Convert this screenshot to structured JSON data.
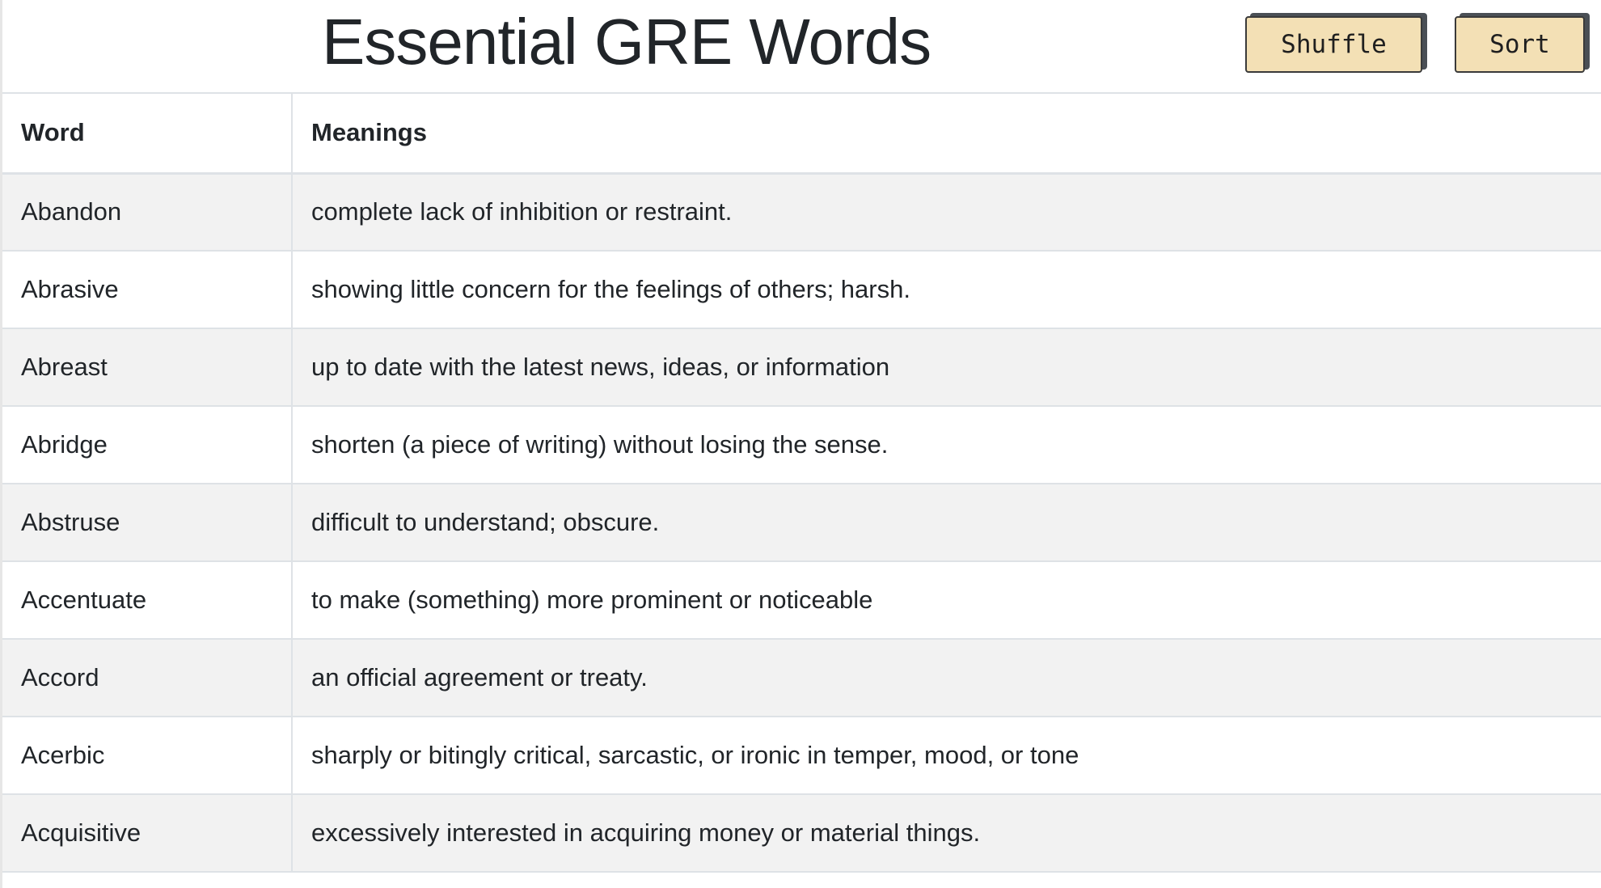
{
  "header": {
    "title": "Essential GRE Words",
    "shuffle_label": "Shuffle",
    "sort_label": "Sort",
    "button_color": "#f3e0b5"
  },
  "table": {
    "columns": [
      "Word",
      "Meanings"
    ],
    "rows": [
      {
        "word": "Abandon",
        "meaning": "complete lack of inhibition or restraint."
      },
      {
        "word": "Abrasive",
        "meaning": "showing little concern for the feelings of others; harsh."
      },
      {
        "word": "Abreast",
        "meaning": "up to date with the latest news, ideas, or information"
      },
      {
        "word": "Abridge",
        "meaning": "shorten (a piece of writing) without losing the sense."
      },
      {
        "word": "Abstruse",
        "meaning": "difficult to understand; obscure."
      },
      {
        "word": "Accentuate",
        "meaning": "to make (something) more prominent or noticeable"
      },
      {
        "word": "Accord",
        "meaning": "an official agreement or treaty."
      },
      {
        "word": "Acerbic",
        "meaning": "sharply or bitingly critical, sarcastic, or ironic in temper, mood, or tone"
      },
      {
        "word": "Acquisitive",
        "meaning": "excessively interested in acquiring money or material things."
      }
    ]
  }
}
